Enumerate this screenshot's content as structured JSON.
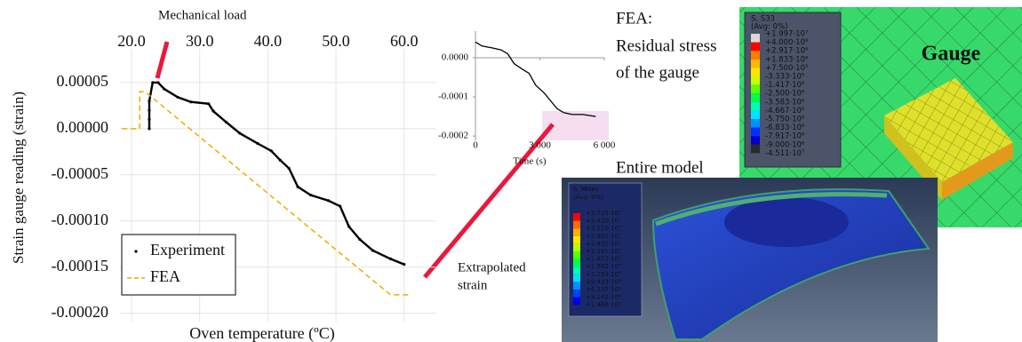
{
  "chart_data": [
    {
      "type": "line",
      "xlabel": "Oven temperature (ºC)",
      "ylabel": "Strain gauge reading (strain)",
      "xlim": [
        18.3,
        64.6
      ],
      "ylim": [
        -0.000209,
        8.65e-05
      ],
      "xticks": [
        {
          "value": 20,
          "label": "20.0"
        },
        {
          "value": 30,
          "label": "30.0"
        },
        {
          "value": 40,
          "label": "40.0"
        },
        {
          "value": 50,
          "label": "50.0"
        },
        {
          "value": 60,
          "label": "60.0"
        }
      ],
      "yticks": [
        5e-05,
        {
          "value": 0,
          "label": "0.00000"
        },
        -5e-05,
        {
          "value": -0.0001,
          "label": "-0.00010"
        },
        -0.00015,
        {
          "value": -0.0002,
          "label": "-0.00020"
        }
      ],
      "grid": true,
      "legend": "lower left",
      "series": [
        {
          "name": "Experiment",
          "color": "#000000",
          "marker": "dot",
          "x": [
            22.6,
            22.6,
            22.6,
            22.6,
            23.1,
            23.9,
            24.8,
            26.8,
            28.7,
            31.3,
            32.0,
            33.9,
            35.9,
            38.5,
            40.5,
            41.8,
            43.1,
            44.4,
            46.3,
            48.9,
            50.6,
            51.9,
            53.5,
            55.4,
            58.0,
            60.0
          ],
          "values": [
            0.0,
            1e-05,
            2e-05,
            3e-05,
            5e-05,
            5e-05,
            4.3e-05,
            3.4e-05,
            2.9e-05,
            2.7e-05,
            1.9e-05,
            7e-06,
            -5e-06,
            -1.6e-05,
            -2.4e-05,
            -3.4e-05,
            -4.3e-05,
            -6.3e-05,
            -7.2e-05,
            -7.8e-05,
            -8.4e-05,
            -0.000106,
            -0.00012,
            -0.000132,
            -0.000141,
            -0.000147
          ]
        },
        {
          "name": "FEA",
          "color": "#f2a900",
          "linestyle": "dashed",
          "x": [
            18.6,
            21.2,
            21.2,
            22.0,
            58.0,
            60.6
          ],
          "values": [
            0.0,
            0.0,
            4e-05,
            4e-05,
            -0.00018,
            -0.00018
          ]
        }
      ],
      "annotations": [
        {
          "text": "Mechanical load"
        },
        {
          "lines": [
            "Extrapolated",
            "strain"
          ]
        }
      ]
    },
    {
      "type": "line",
      "xlabel": "Time (s)",
      "xlim": [
        0,
        6000
      ],
      "ylim": [
        -0.000211,
        6.8e-05
      ],
      "xticks": [
        0,
        {
          "value": 3000,
          "label": "3 000"
        },
        {
          "value": 6000,
          "label": "6 000"
        }
      ],
      "yticks": [
        {
          "value": 0,
          "label": "0.0000"
        },
        -0.0001,
        -0.0002
      ],
      "grid": false,
      "series": [
        {
          "color": "#000000",
          "x": [
            0,
            300,
            800,
            1200,
            1500,
            1800,
            2200,
            2500,
            2800,
            3200,
            3500,
            3800,
            4100,
            4500,
            5000,
            5600
          ],
          "values": [
            4e-05,
            3e-05,
            2.5e-05,
            2e-05,
            1e-05,
            -1.5e-05,
            -3e-05,
            -4e-05,
            -7e-05,
            -9e-05,
            -0.00011,
            -0.00013,
            -0.00014,
            -0.000145,
            -0.000145,
            -0.00015
          ]
        }
      ]
    }
  ],
  "fea_panels": [
    {
      "title_lines": [
        "FEA:",
        "Residual stress",
        "of the gauge"
      ],
      "legend_title": [
        "S, S33",
        "(Avg: 0%)"
      ],
      "legend_values": [
        "+1.997·10⁷",
        "+4.000·10⁶",
        "+2.917·10⁶",
        "+1.833·10⁶",
        "+7.500·10⁵",
        "-3.333·10⁵",
        "-1.417·10⁶",
        "-2.500·10⁶",
        "-3.583·10⁶",
        "-4.667·10⁶",
        "-5.750·10⁶",
        "-6.833·10⁶",
        "-7.917·10⁶",
        "-9.000·10⁶",
        "-4.511·10⁷"
      ],
      "label": "Gauge"
    },
    {
      "title": "Entire model",
      "legend_title": [
        "S, Mises",
        "(Avg: 0%)"
      ],
      "legend_values": [
        "+3.729·10⁷",
        "+3.420·10⁷",
        "+3.110·10⁷",
        "+2.801·10⁷",
        "+2.491·10⁷",
        "+2.181·10⁷",
        "+1.872·10⁷",
        "+1.562·10⁷",
        "+1.253·10⁷",
        "+9.433·10⁶",
        "+6.337·10⁶",
        "+3.242·10⁶",
        "+1.466·10⁵"
      ]
    }
  ]
}
